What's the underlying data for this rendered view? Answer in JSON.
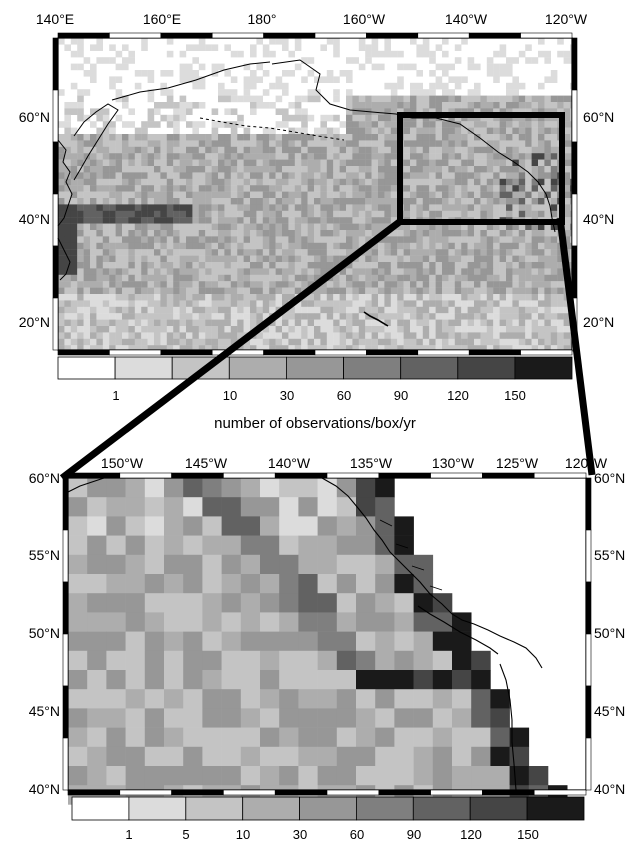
{
  "top_map": {
    "lon_labels": [
      "140°E",
      "160°E",
      "180°",
      "160°W",
      "140°W",
      "120°W"
    ],
    "lat_labels_left": [
      "60°N",
      "40°N",
      "20°N"
    ],
    "lat_labels_right": [
      "60°N",
      "40°N",
      "20°N"
    ],
    "colorbar_labels": [
      "1",
      "10",
      "30",
      "60",
      "90",
      "120",
      "150"
    ],
    "colorbar_title": "number of observations/box/yr"
  },
  "bottom_map": {
    "lon_labels": [
      "150°W",
      "145°W",
      "140°W",
      "135°W",
      "130°W",
      "125°W",
      "120°W"
    ],
    "lat_labels_left": [
      "60°N",
      "55°N",
      "50°N",
      "45°N",
      "40°N"
    ],
    "lat_labels_right": [
      "60°N",
      "55°N",
      "50°N",
      "45°N",
      "40°N"
    ],
    "colorbar_labels": [
      "1",
      "5",
      "10",
      "30",
      "60",
      "90",
      "120",
      "150"
    ]
  },
  "colors": {
    "scale": [
      "#ffffff",
      "#dcdcdc",
      "#c4c4c4",
      "#adadad",
      "#979797",
      "#7f7f7f",
      "#626262",
      "#454545",
      "#1a1a1a"
    ],
    "coast": "#000000",
    "inset_box": "#000000"
  }
}
